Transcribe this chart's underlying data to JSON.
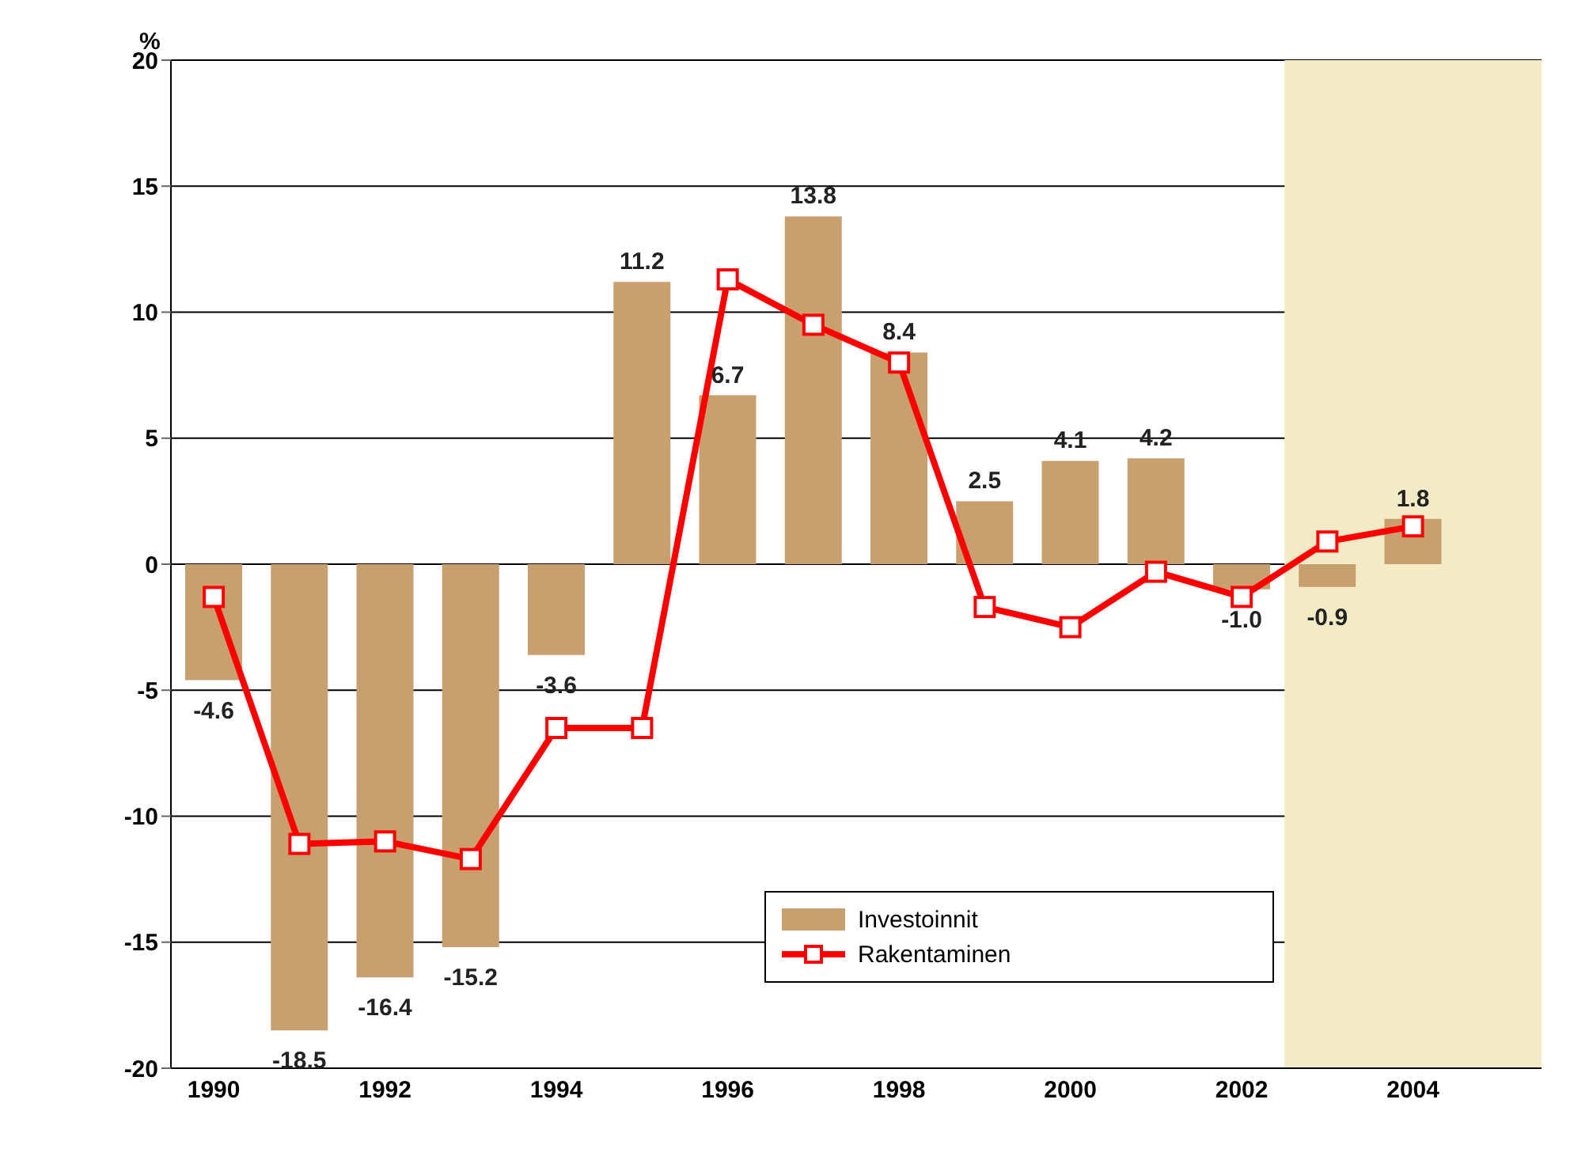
{
  "chart_data": {
    "type": "bar",
    "ylabel": "%",
    "x": [
      1990,
      1991,
      1992,
      1993,
      1994,
      1995,
      1996,
      1997,
      1998,
      1999,
      2000,
      2001,
      2002,
      2003,
      2004
    ],
    "xlim": [
      1989.5,
      2005.5
    ],
    "xticks": [
      1990,
      1992,
      1994,
      1996,
      1998,
      2000,
      2002,
      2004
    ],
    "ylim": [
      -20,
      20
    ],
    "yticks": [
      -20,
      -15,
      -10,
      -5,
      0,
      5,
      10,
      15,
      20
    ],
    "series": [
      {
        "name": "Investoinnit",
        "color": "#c8a070",
        "values": [
          -4.6,
          -18.5,
          -16.4,
          -15.2,
          -3.6,
          11.2,
          6.7,
          13.8,
          8.4,
          2.5,
          4.1,
          4.2,
          -1.0,
          -0.9,
          1.8
        ],
        "value_labels": [
          "-4.6",
          "-18.5",
          "-16.4",
          "-15.2",
          "-3.6",
          "11.2",
          "6.7",
          "13.8",
          "8.4",
          "2.5",
          "4.1",
          "4.2",
          "-1.0",
          "-0.9",
          "1.8"
        ]
      },
      {
        "name": "Rakentaminen",
        "type": "line",
        "color": "#ff0000",
        "marker": "square",
        "values": [
          -1.3,
          -11.1,
          -11.0,
          -11.7,
          -6.5,
          -6.5,
          11.3,
          9.5,
          8.0,
          -1.7,
          -2.5,
          -0.3,
          -1.3,
          0.9,
          1.5
        ]
      }
    ],
    "bands": [
      {
        "axis": "x",
        "from": 2002.5,
        "to": 2005.5,
        "color": "#f3ebc6"
      }
    ],
    "grid": "y",
    "legend": "bottom"
  }
}
